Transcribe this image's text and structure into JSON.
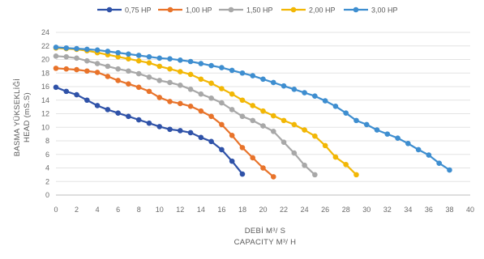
{
  "chart_data": {
    "type": "line",
    "xlabel": [
      "DEBİ M³/ S",
      "CAPACITY M³/ H"
    ],
    "ylabel": [
      "BASMA YÜKSEKLİĞİ",
      "HEAD (mS.S)"
    ],
    "xlim": [
      0,
      40
    ],
    "ylim": [
      0,
      24
    ],
    "xticks": [
      0,
      2,
      4,
      6,
      8,
      10,
      12,
      14,
      16,
      18,
      20,
      22,
      24,
      26,
      28,
      30,
      32,
      34,
      36,
      38,
      40
    ],
    "yticks": [
      0,
      2,
      4,
      6,
      8,
      10,
      12,
      14,
      16,
      18,
      20,
      22,
      24
    ],
    "grid": true,
    "legend_position": "top",
    "series": [
      {
        "name": "0,75 HP",
        "color": "#2f52a8",
        "x": [
          0,
          1,
          2,
          3,
          4,
          5,
          6,
          7,
          8,
          9,
          10,
          11,
          12,
          13,
          14,
          15,
          16,
          17,
          18
        ],
        "y": [
          15.9,
          15.3,
          14.8,
          14.0,
          13.2,
          12.6,
          12.1,
          11.6,
          11.1,
          10.6,
          10.1,
          9.7,
          9.5,
          9.2,
          8.5,
          7.9,
          6.7,
          5.0,
          3.1
        ]
      },
      {
        "name": "1,00 HP",
        "color": "#e8732a",
        "x": [
          0,
          1,
          2,
          3,
          4,
          5,
          6,
          7,
          8,
          9,
          10,
          11,
          12,
          13,
          14,
          15,
          16,
          17,
          18,
          19,
          20,
          21
        ],
        "y": [
          18.7,
          18.6,
          18.5,
          18.3,
          18.1,
          17.5,
          16.9,
          16.4,
          15.9,
          15.3,
          14.4,
          13.8,
          13.5,
          13.1,
          12.4,
          11.6,
          10.4,
          8.8,
          7.0,
          5.5,
          4.0,
          2.7
        ]
      },
      {
        "name": "1,50 HP",
        "color": "#a8a8a8",
        "x": [
          0,
          1,
          2,
          3,
          4,
          5,
          6,
          7,
          8,
          9,
          10,
          11,
          12,
          13,
          14,
          15,
          16,
          17,
          18,
          19,
          20,
          21,
          22,
          23,
          24,
          25
        ],
        "y": [
          20.5,
          20.4,
          20.2,
          19.8,
          19.4,
          19.0,
          18.6,
          18.3,
          17.9,
          17.4,
          16.9,
          16.6,
          16.2,
          15.6,
          14.9,
          14.3,
          13.6,
          12.6,
          11.6,
          11.0,
          10.2,
          9.4,
          7.8,
          6.2,
          4.4,
          3.0
        ]
      },
      {
        "name": "2,00 HP",
        "color": "#f2b705",
        "x": [
          0,
          1,
          2,
          3,
          4,
          5,
          6,
          7,
          8,
          9,
          10,
          11,
          12,
          13,
          14,
          15,
          16,
          17,
          18,
          19,
          20,
          21,
          22,
          23,
          24,
          25,
          26,
          27,
          28,
          29
        ],
        "y": [
          21.7,
          21.6,
          21.5,
          21.3,
          21.0,
          20.7,
          20.4,
          20.1,
          19.8,
          19.5,
          19.0,
          18.6,
          18.2,
          17.8,
          17.1,
          16.5,
          15.7,
          14.9,
          14.0,
          13.2,
          12.4,
          11.7,
          11.0,
          10.4,
          9.6,
          8.7,
          7.3,
          5.6,
          4.5,
          3.0
        ]
      },
      {
        "name": "3,00 HP",
        "color": "#3e8ed0",
        "x": [
          0,
          1,
          2,
          3,
          4,
          5,
          6,
          7,
          8,
          9,
          10,
          11,
          12,
          13,
          14,
          15,
          16,
          17,
          18,
          19,
          20,
          21,
          22,
          23,
          24,
          25,
          26,
          27,
          28,
          29,
          30,
          31,
          32,
          33,
          34,
          35,
          36,
          37,
          38
        ],
        "y": [
          21.8,
          21.7,
          21.6,
          21.5,
          21.4,
          21.2,
          21.0,
          20.8,
          20.6,
          20.4,
          20.2,
          20.1,
          19.9,
          19.7,
          19.4,
          19.1,
          18.8,
          18.4,
          18.0,
          17.6,
          17.1,
          16.6,
          16.1,
          15.6,
          15.1,
          14.6,
          13.9,
          13.1,
          12.1,
          11.0,
          10.4,
          9.6,
          9.0,
          8.4,
          7.6,
          6.7,
          5.9,
          4.7,
          3.7
        ]
      }
    ]
  }
}
